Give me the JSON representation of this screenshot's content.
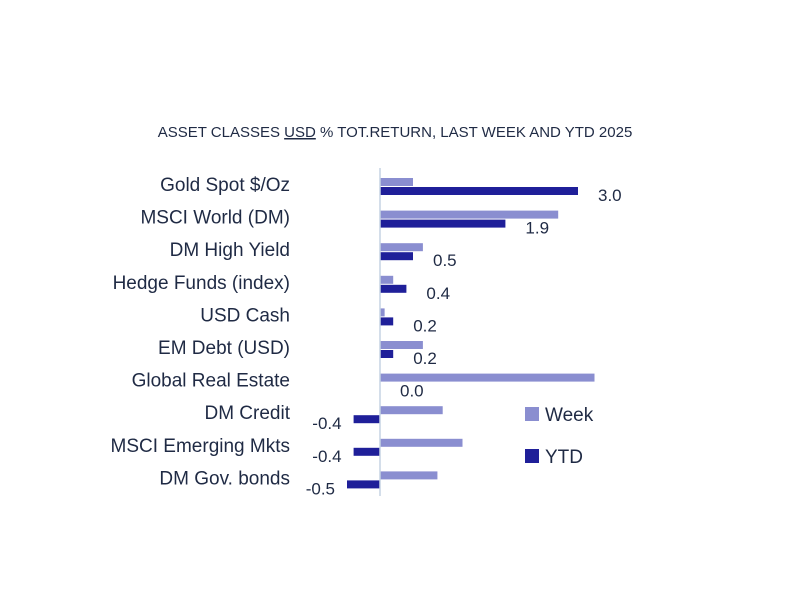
{
  "chart_data": {
    "type": "bar",
    "orientation": "horizontal",
    "title": {
      "prefix": "ASSET CLASSES ",
      "underlined": "USD",
      "suffix": " % TOT.RETURN, LAST WEEK AND YTD 2025"
    },
    "categories": [
      "Gold Spot   $/Oz",
      "MSCI World (DM)",
      "DM High Yield",
      "Hedge Funds (index)",
      "USD Cash",
      "EM Debt (USD)",
      "Global Real Estate",
      "DM Credit",
      "MSCI Emerging Mkts",
      "DM Gov. bonds"
    ],
    "series": [
      {
        "name": "Week",
        "color": "#8a8ed0",
        "values": [
          0.5,
          2.7,
          0.65,
          0.2,
          0.07,
          0.65,
          3.25,
          0.95,
          1.25,
          0.87
        ]
      },
      {
        "name": "YTD",
        "color": "#1f1f99",
        "values": [
          3.0,
          1.9,
          0.5,
          0.4,
          0.2,
          0.2,
          0.0,
          -0.4,
          -0.4,
          -0.5
        ]
      }
    ],
    "data_labels": [
      "3.0",
      "1.9",
      "0.5",
      "0.4",
      "0.2",
      "0.2",
      "0.0",
      "-0.4",
      "-0.4",
      "-0.5"
    ],
    "legend": {
      "position": "bottom-right",
      "entries": [
        "Week",
        "YTD"
      ]
    },
    "grid": false,
    "xlim": [
      -0.5,
      3.3
    ],
    "axis_color": "#c5d3e3",
    "text_color": "#1f2a44"
  }
}
